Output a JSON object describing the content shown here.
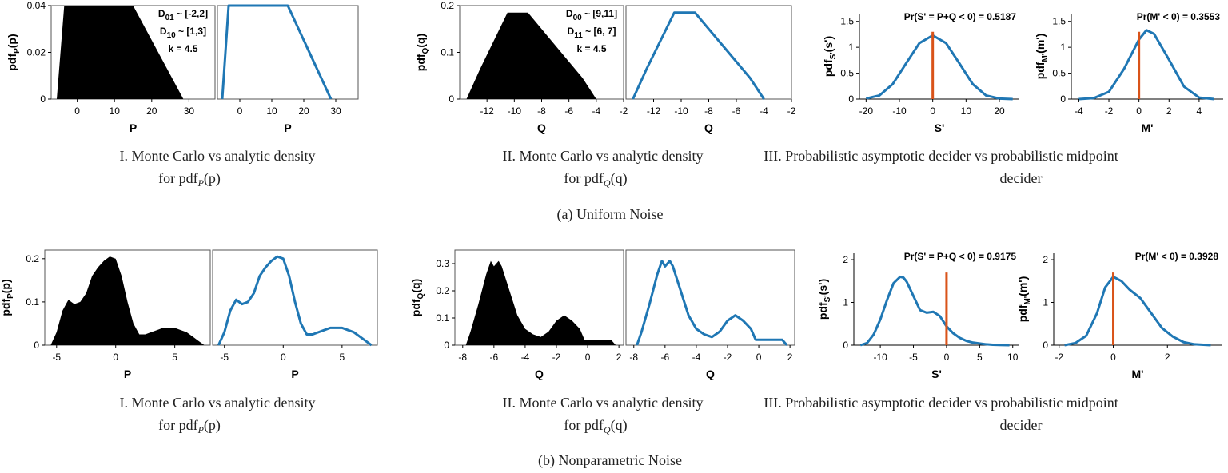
{
  "captions": {
    "row_a": "(a) Uniform Noise",
    "row_b": "(b) Nonparametric Noise",
    "p_line1": "I. Monte Carlo vs analytic density",
    "p_line2": "for pdf",
    "p_sub": "P",
    "p_arg": "(p)",
    "q_line1": "II. Monte Carlo vs analytic density",
    "q_line2": "for pdf",
    "q_sub": "Q",
    "q_arg": "(q)",
    "d_line1": "III. Probabilistic asymptotic decider vs probabilistic midpoint",
    "d_line2": "decider"
  },
  "colors": {
    "histogram": "#000000",
    "curve": "#1f77b4",
    "marker": "#d95319"
  },
  "chart_data": [
    {
      "id": "a-p-mc",
      "type": "area",
      "row": "a",
      "panel": "p-left",
      "xlabel": "P",
      "ylabel_main": "pdf",
      "ylabel_sub": "P",
      "ylabel_arg": "(p)",
      "xlim": [
        -7,
        37
      ],
      "ylim": [
        0,
        0.04
      ],
      "xticks": [
        "0",
        "10",
        "20",
        "30"
      ],
      "xtick_values": [
        0,
        10,
        20,
        30
      ],
      "yticks": [
        "0",
        "0.02",
        "0.04"
      ],
      "ytick_values": [
        0,
        0.02,
        0.04
      ],
      "x": [
        -5.5,
        -3.5,
        15,
        28.5
      ],
      "y": [
        0,
        0.04,
        0.04,
        0
      ],
      "annotations": [
        {
          "main": "D",
          "sub": "01",
          "rest": " ~ [-2,2]"
        },
        {
          "main": "D",
          "sub": "10",
          "rest": " ~ [1,3]"
        },
        {
          "main": "k = 4.5",
          "sub": "",
          "rest": ""
        }
      ]
    },
    {
      "id": "a-p-an",
      "type": "line",
      "row": "a",
      "panel": "p-right",
      "xlabel": "P",
      "xlim": [
        -7,
        37
      ],
      "ylim": [
        0,
        0.04
      ],
      "xticks": [
        "0",
        "10",
        "20",
        "30"
      ],
      "xtick_values": [
        0,
        10,
        20,
        30
      ],
      "x": [
        -5.5,
        -3.5,
        15,
        28.5
      ],
      "y": [
        0,
        0.04,
        0.04,
        0
      ]
    },
    {
      "id": "a-q-mc",
      "type": "area",
      "row": "a",
      "panel": "q-left",
      "xlabel": "Q",
      "ylabel_main": "pdf",
      "ylabel_sub": "Q",
      "ylabel_arg": "(q)",
      "xlim": [
        -14,
        -2
      ],
      "ylim": [
        0,
        0.2
      ],
      "xticks": [
        "-12",
        "-10",
        "-8",
        "-6",
        "-4",
        "-2"
      ],
      "xtick_values": [
        -12,
        -10,
        -8,
        -6,
        -4,
        -2
      ],
      "yticks": [
        "0",
        "0.1",
        "0.2"
      ],
      "ytick_values": [
        0,
        0.1,
        0.2
      ],
      "x": [
        -13.5,
        -12.5,
        -11.5,
        -10.5,
        -9,
        -7,
        -5,
        -4
      ],
      "y": [
        0,
        0.065,
        0.125,
        0.185,
        0.185,
        0.115,
        0.045,
        0
      ],
      "annotations": [
        {
          "main": "D",
          "sub": "00",
          "rest": " ~ [9,11]"
        },
        {
          "main": "D",
          "sub": "11",
          "rest": " ~ [6, 7]"
        },
        {
          "main": "k = 4.5",
          "sub": "",
          "rest": ""
        }
      ]
    },
    {
      "id": "a-q-an",
      "type": "line",
      "row": "a",
      "panel": "q-right",
      "xlabel": "Q",
      "xlim": [
        -14,
        -2
      ],
      "ylim": [
        0,
        0.2
      ],
      "xticks": [
        "-12",
        "-10",
        "-8",
        "-6",
        "-4",
        "-2"
      ],
      "xtick_values": [
        -12,
        -10,
        -8,
        -6,
        -4,
        -2
      ],
      "x": [
        -13.5,
        -12.5,
        -11.5,
        -10.5,
        -9,
        -7,
        -5,
        -4
      ],
      "y": [
        0,
        0.065,
        0.125,
        0.185,
        0.185,
        0.115,
        0.045,
        0
      ]
    },
    {
      "id": "a-s",
      "type": "line",
      "row": "a",
      "panel": "s",
      "xlabel": "S'",
      "ylabel_main": "pdf",
      "ylabel_sub": "S'",
      "ylabel_arg": "(s')",
      "xlim": [
        -22,
        26
      ],
      "ylim": [
        0,
        1.65
      ],
      "xticks": [
        "-20",
        "-10",
        "0",
        "10",
        "20"
      ],
      "xtick_values": [
        -20,
        -10,
        0,
        10,
        20
      ],
      "yticks": [
        "0",
        "0.5",
        "1",
        "1.5"
      ],
      "ytick_values": [
        0,
        0.5,
        1,
        1.5
      ],
      "x": [
        -20,
        -16,
        -12,
        -8,
        -4,
        0,
        4,
        8,
        12,
        16,
        20,
        24
      ],
      "y": [
        0.01,
        0.07,
        0.29,
        0.69,
        1.08,
        1.23,
        1.08,
        0.69,
        0.29,
        0.07,
        0.01,
        0
      ],
      "marker_x": 0,
      "marker_y": 1.3,
      "annotation": "Pr(S' = P+Q < 0) = 0.5187"
    },
    {
      "id": "a-m",
      "type": "line",
      "row": "a",
      "panel": "m",
      "xlabel": "M'",
      "ylabel_main": "pdf",
      "ylabel_sub": "M'",
      "ylabel_arg": "(m')",
      "xlim": [
        -4.5,
        5.6
      ],
      "ylim": [
        0,
        1.65
      ],
      "xticks": [
        "-4",
        "-2",
        "0",
        "2",
        "4"
      ],
      "xtick_values": [
        -4,
        -2,
        0,
        2,
        4
      ],
      "yticks": [
        "0",
        "0.5",
        "1",
        "1.5"
      ],
      "ytick_values": [
        0,
        0.5,
        1,
        1.5
      ],
      "x": [
        -4,
        -3,
        -2,
        -1,
        0,
        0.5,
        1,
        2,
        3,
        4,
        5
      ],
      "y": [
        0,
        0.02,
        0.14,
        0.58,
        1.15,
        1.33,
        1.26,
        0.76,
        0.24,
        0.03,
        0
      ],
      "marker_x": 0,
      "marker_y": 1.3,
      "annotation": "Pr(M' < 0) = 0.3553"
    },
    {
      "id": "b-p-mc",
      "type": "area",
      "row": "b",
      "panel": "p-left",
      "xlabel": "P",
      "ylabel_main": "pdf",
      "ylabel_sub": "P",
      "ylabel_arg": "(p)",
      "xlim": [
        -6,
        8
      ],
      "ylim": [
        0,
        0.22
      ],
      "xticks": [
        "-5",
        "0",
        "5"
      ],
      "xtick_values": [
        -5,
        0,
        5
      ],
      "yticks": [
        "0",
        "0.1",
        "0.2"
      ],
      "ytick_values": [
        0,
        0.1,
        0.2
      ],
      "x": [
        -5.5,
        -5,
        -4.5,
        -4,
        -3.5,
        -3,
        -2.5,
        -2,
        -1.5,
        -1,
        -0.5,
        0,
        0.5,
        1,
        1.5,
        2,
        2.5,
        3,
        3.5,
        4,
        4.5,
        5,
        5.5,
        6,
        6.5,
        7,
        7.5
      ],
      "y": [
        0,
        0.03,
        0.08,
        0.105,
        0.095,
        0.1,
        0.12,
        0.16,
        0.18,
        0.195,
        0.205,
        0.2,
        0.16,
        0.1,
        0.05,
        0.025,
        0.025,
        0.03,
        0.035,
        0.04,
        0.04,
        0.04,
        0.035,
        0.03,
        0.02,
        0.01,
        0
      ]
    },
    {
      "id": "b-p-an",
      "type": "line",
      "row": "b",
      "panel": "p-right",
      "xlabel": "P",
      "xlim": [
        -6,
        8
      ],
      "ylim": [
        0,
        0.22
      ],
      "xticks": [
        "-5",
        "0",
        "5"
      ],
      "xtick_values": [
        -5,
        0,
        5
      ],
      "x": [
        -5.5,
        -5,
        -4.5,
        -4,
        -3.5,
        -3,
        -2.5,
        -2,
        -1.5,
        -1,
        -0.5,
        0,
        0.5,
        1,
        1.5,
        2,
        2.5,
        3,
        3.5,
        4,
        4.5,
        5,
        5.5,
        6,
        6.5,
        7,
        7.5
      ],
      "y": [
        0,
        0.03,
        0.08,
        0.105,
        0.095,
        0.1,
        0.12,
        0.16,
        0.18,
        0.195,
        0.205,
        0.2,
        0.16,
        0.1,
        0.05,
        0.025,
        0.025,
        0.03,
        0.035,
        0.04,
        0.04,
        0.04,
        0.035,
        0.03,
        0.02,
        0.01,
        0
      ]
    },
    {
      "id": "b-q-mc",
      "type": "area",
      "row": "b",
      "panel": "q-left",
      "xlabel": "Q",
      "ylabel_main": "pdf",
      "ylabel_sub": "Q",
      "ylabel_arg": "(q)",
      "xlim": [
        -8.5,
        2.3
      ],
      "ylim": [
        0,
        0.35
      ],
      "xticks": [
        "-8",
        "-6",
        "-4",
        "-2",
        "0",
        "2"
      ],
      "xtick_values": [
        -8,
        -6,
        -4,
        -2,
        0,
        2
      ],
      "yticks": [
        "0",
        "0.1",
        "0.2",
        "0.3"
      ],
      "ytick_values": [
        0,
        0.1,
        0.2,
        0.3
      ],
      "x": [
        -7.8,
        -7.5,
        -7,
        -6.5,
        -6.2,
        -6,
        -5.7,
        -5.5,
        -5,
        -4.5,
        -4,
        -3.5,
        -3,
        -2.5,
        -2,
        -1.5,
        -1,
        -0.5,
        -0.2,
        0,
        0.5,
        1,
        1.5,
        1.8
      ],
      "y": [
        0,
        0.05,
        0.15,
        0.26,
        0.31,
        0.29,
        0.31,
        0.29,
        0.2,
        0.11,
        0.06,
        0.04,
        0.03,
        0.05,
        0.09,
        0.11,
        0.09,
        0.06,
        0.02,
        0.02,
        0.02,
        0.02,
        0.02,
        0
      ]
    },
    {
      "id": "b-q-an",
      "type": "line",
      "row": "b",
      "panel": "q-right",
      "xlabel": "Q",
      "xlim": [
        -8.5,
        2.3
      ],
      "ylim": [
        0,
        0.35
      ],
      "xticks": [
        "-8",
        "-6",
        "-4",
        "-2",
        "0",
        "2"
      ],
      "xtick_values": [
        -8,
        -6,
        -4,
        -2,
        0,
        2
      ],
      "x": [
        -7.8,
        -7.5,
        -7,
        -6.5,
        -6.2,
        -6,
        -5.7,
        -5.5,
        -5,
        -4.5,
        -4,
        -3.5,
        -3,
        -2.5,
        -2,
        -1.5,
        -1,
        -0.5,
        -0.2,
        0,
        0.5,
        1,
        1.5,
        1.8
      ],
      "y": [
        0,
        0.05,
        0.15,
        0.26,
        0.31,
        0.29,
        0.31,
        0.29,
        0.2,
        0.11,
        0.06,
        0.04,
        0.03,
        0.05,
        0.09,
        0.11,
        0.09,
        0.06,
        0.02,
        0.02,
        0.02,
        0.02,
        0.02,
        0
      ]
    },
    {
      "id": "b-s",
      "type": "line",
      "row": "b",
      "panel": "s",
      "xlabel": "S'",
      "ylabel_main": "pdf",
      "ylabel_sub": "S'",
      "ylabel_arg": "(s')",
      "xlim": [
        -14,
        11
      ],
      "ylim": [
        0,
        2.15
      ],
      "xticks": [
        "-10",
        "-5",
        "0",
        "5",
        "10"
      ],
      "xtick_values": [
        -10,
        -5,
        0,
        5,
        10
      ],
      "yticks": [
        "0",
        "1",
        "2"
      ],
      "ytick_values": [
        0,
        1,
        2
      ],
      "x": [
        -13,
        -12,
        -11,
        -10,
        -9,
        -8,
        -7,
        -6.5,
        -6,
        -5,
        -4,
        -3,
        -2,
        -1,
        0,
        1,
        2,
        3,
        4,
        5,
        6,
        7,
        8,
        9.5
      ],
      "y": [
        0,
        0.05,
        0.25,
        0.6,
        1.05,
        1.45,
        1.6,
        1.58,
        1.48,
        1.15,
        0.82,
        0.76,
        0.78,
        0.68,
        0.44,
        0.28,
        0.17,
        0.1,
        0.06,
        0.04,
        0.02,
        0.01,
        0.005,
        0
      ],
      "marker_x": 0,
      "marker_y": 1.7,
      "annotation": "Pr(S' = P+Q < 0) = 0.9175"
    },
    {
      "id": "b-m",
      "type": "line",
      "row": "b",
      "panel": "m",
      "xlabel": "M'",
      "ylabel_main": "pdf",
      "ylabel_sub": "M'",
      "ylabel_arg": "(m')",
      "xlim": [
        -2.2,
        4
      ],
      "ylim": [
        0,
        2.15
      ],
      "xticks": [
        "-2",
        "0",
        "2"
      ],
      "xtick_values": [
        -2,
        0,
        2
      ],
      "yticks": [
        "0",
        "1",
        "2"
      ],
      "ytick_values": [
        0,
        1,
        2
      ],
      "x": [
        -1.8,
        -1.4,
        -1,
        -0.6,
        -0.3,
        0,
        0.3,
        0.6,
        1,
        1.4,
        1.8,
        2.2,
        2.6,
        3,
        3.6
      ],
      "y": [
        0,
        0.05,
        0.22,
        0.75,
        1.35,
        1.6,
        1.5,
        1.3,
        1.1,
        0.75,
        0.4,
        0.2,
        0.07,
        0.02,
        0
      ],
      "marker_x": 0,
      "marker_y": 1.7,
      "annotation": "Pr(M' < 0) = 0.3928"
    }
  ]
}
